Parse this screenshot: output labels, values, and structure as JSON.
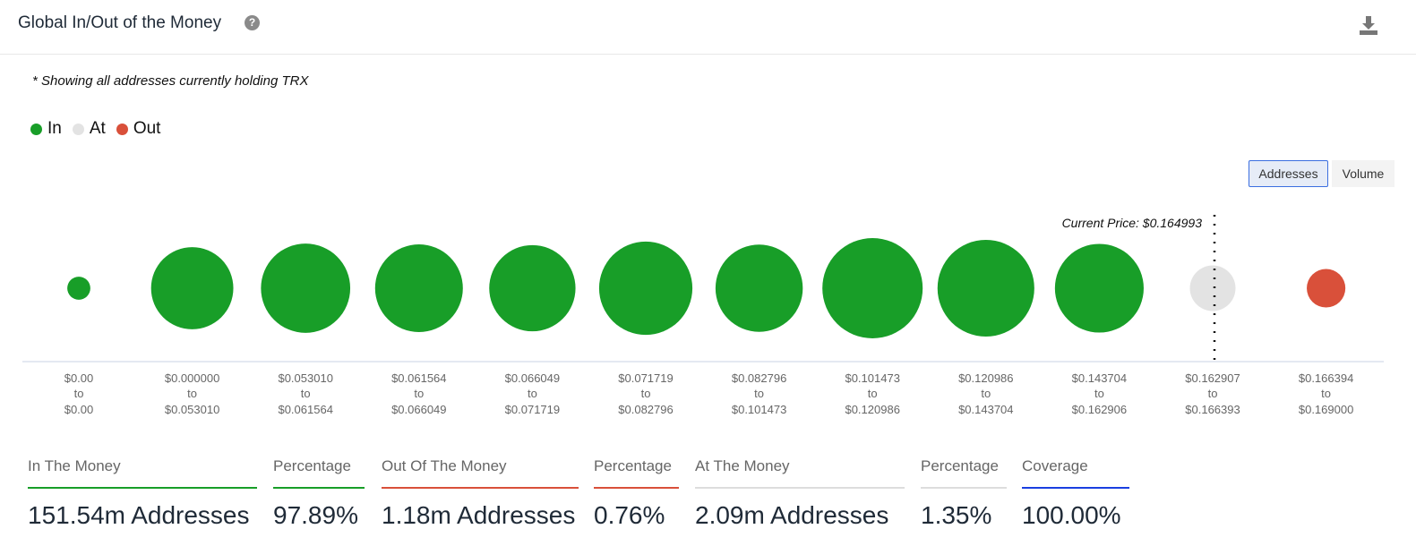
{
  "header": {
    "title": "Global In/Out of the Money",
    "help_icon": "?"
  },
  "note": "* Showing all addresses currently holding TRX",
  "legend": [
    {
      "label": "In",
      "color": "#189e28"
    },
    {
      "label": "At",
      "color": "#e3e3e3"
    },
    {
      "label": "Out",
      "color": "#d9503a"
    }
  ],
  "toggle": {
    "addresses": "Addresses",
    "volume": "Volume",
    "selected": "Addresses"
  },
  "chart_data": {
    "type": "bubble",
    "size_metric": "Addresses",
    "current_price_label": "Current Price: $0.164993",
    "current_price": 0.164993,
    "categories": [
      {
        "from": "$0.00",
        "to": "$0.00",
        "status": "In",
        "relative_size": 0.23
      },
      {
        "from": "$0.000000",
        "to": "$0.053010",
        "status": "In",
        "relative_size": 0.82
      },
      {
        "from": "$0.053010",
        "to": "$0.061564",
        "status": "In",
        "relative_size": 0.89
      },
      {
        "from": "$0.061564",
        "to": "$0.066049",
        "status": "In",
        "relative_size": 0.875
      },
      {
        "from": "$0.066049",
        "to": "$0.071719",
        "status": "In",
        "relative_size": 0.86
      },
      {
        "from": "$0.071719",
        "to": "$0.082796",
        "status": "In",
        "relative_size": 0.93
      },
      {
        "from": "$0.082796",
        "to": "$0.101473",
        "status": "In",
        "relative_size": 0.87
      },
      {
        "from": "$0.101473",
        "to": "$0.120986",
        "status": "In",
        "relative_size": 1.0
      },
      {
        "from": "$0.120986",
        "to": "$0.143704",
        "status": "In",
        "relative_size": 0.965
      },
      {
        "from": "$0.143704",
        "to": "$0.162906",
        "status": "In",
        "relative_size": 0.885
      },
      {
        "from": "$0.162907",
        "to": "$0.166393",
        "status": "At",
        "relative_size": 0.455
      },
      {
        "from": "$0.166394",
        "to": "$0.169000",
        "status": "Out",
        "relative_size": 0.385
      }
    ],
    "to_word": "to"
  },
  "stats": [
    {
      "label": "In The Money",
      "value": "151.54m Addresses",
      "color": "#189e28"
    },
    {
      "label": "Percentage",
      "value": "97.89%",
      "color": "#189e28"
    },
    {
      "label": "Out Of The Money",
      "value": "1.18m Addresses",
      "color": "#d9503a"
    },
    {
      "label": "Percentage",
      "value": "0.76%",
      "color": "#d9503a"
    },
    {
      "label": "At The Money",
      "value": "2.09m Addresses",
      "color": "#dddddd"
    },
    {
      "label": "Percentage",
      "value": "1.35%",
      "color": "#dddddd"
    },
    {
      "label": "Coverage",
      "value": "100.00%",
      "color": "#1a3fe0"
    }
  ]
}
